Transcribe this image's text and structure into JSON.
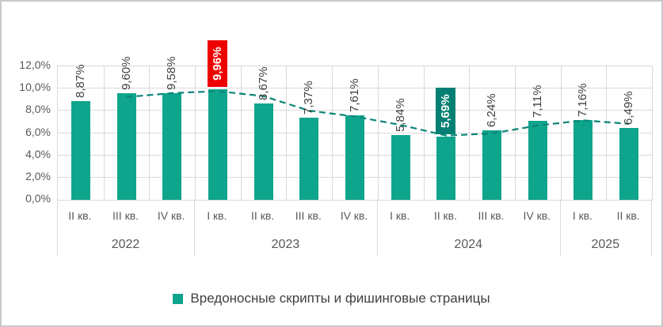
{
  "chart_data": {
    "type": "bar",
    "title": "",
    "legend": [
      "Вредоносные скрипты и фишинговые страницы"
    ],
    "unit": "%",
    "groups": [
      {
        "year": "2022",
        "quarters": [
          "II кв.",
          "III кв.",
          "IV кв."
        ]
      },
      {
        "year": "2023",
        "quarters": [
          "I кв.",
          "II кв.",
          "III кв.",
          "IV кв."
        ]
      },
      {
        "year": "2024",
        "quarters": [
          "I кв.",
          "II кв.",
          "III кв.",
          "IV кв."
        ]
      },
      {
        "year": "2025",
        "quarters": [
          "I кв.",
          "II кв."
        ]
      }
    ],
    "categories": [
      "II кв. 2022",
      "III кв. 2022",
      "IV кв. 2022",
      "I кв. 2023",
      "II кв. 2023",
      "III кв. 2023",
      "IV кв. 2023",
      "I кв. 2024",
      "II кв. 2024",
      "III кв. 2024",
      "IV кв. 2024",
      "I кв. 2025",
      "II кв. 2025"
    ],
    "values": [
      8.87,
      9.6,
      9.58,
      9.96,
      8.67,
      7.37,
      7.61,
      5.84,
      5.69,
      6.24,
      7.11,
      7.16,
      6.49
    ],
    "labels": [
      "8,87%",
      "9,60%",
      "9,58%",
      "9,96%",
      "8,67%",
      "7,37%",
      "7,61%",
      "5,84%",
      "5,69%",
      "6,24%",
      "7,11%",
      "7,16%",
      "6,49%"
    ],
    "highlights": [
      {
        "index": 3,
        "label": "9,96%",
        "box_color": "#EE0000",
        "text_color": "#FFFFFF"
      },
      {
        "index": 8,
        "label": "5,69%",
        "box_color": "#038073",
        "text_color": "#FFFFFF"
      }
    ],
    "trendline": {
      "style": "dashed",
      "color": "#0B8578",
      "start_index": 1,
      "values": [
        9.24,
        9.59,
        9.77,
        9.32,
        8.02,
        7.49,
        6.73,
        5.77,
        5.97,
        6.68,
        7.14,
        6.83
      ]
    },
    "y_axis": {
      "min": 0,
      "max": 12,
      "ticks": [
        {
          "value": 0,
          "label": "0,0%"
        },
        {
          "value": 2,
          "label": "2,0%"
        },
        {
          "value": 4,
          "label": "4,0%"
        },
        {
          "value": 6,
          "label": "6,0%"
        },
        {
          "value": 8,
          "label": "8,0%"
        },
        {
          "value": 10,
          "label": "10,0%"
        },
        {
          "value": 12,
          "label": "12,0%"
        }
      ],
      "grid": true
    },
    "xlabel": "",
    "ylabel": ""
  },
  "colors": {
    "bar": "#0FA58C",
    "trendline": "#0B8578",
    "gridline": "#D9D9D9",
    "axis_text": "#595959",
    "data_label_text": "#3F3F3F",
    "highlight_red": "#EE0000",
    "highlight_teal": "#038073",
    "border": "#C9C9C9",
    "background": "#FFFFFF"
  }
}
